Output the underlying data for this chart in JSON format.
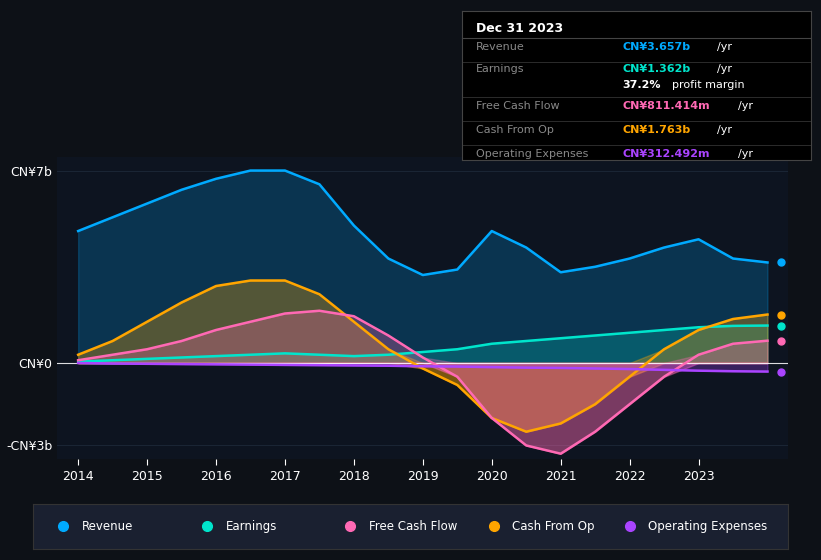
{
  "background_color": "#0d1117",
  "plot_bg_color": "#0d1420",
  "grid_color": "#1e2a3a",
  "years": [
    2014,
    2014.5,
    2015,
    2015.5,
    2016,
    2016.5,
    2017,
    2017.5,
    2018,
    2018.5,
    2019,
    2019.5,
    2020,
    2020.5,
    2021,
    2021.5,
    2022,
    2022.5,
    2023,
    2023.5,
    2024
  ],
  "revenue": [
    4.8,
    5.3,
    5.8,
    6.3,
    6.7,
    7.0,
    7.0,
    6.5,
    5.0,
    3.8,
    3.2,
    3.4,
    4.8,
    4.2,
    3.3,
    3.5,
    3.8,
    4.2,
    4.5,
    3.8,
    3.657
  ],
  "earnings": [
    0.05,
    0.1,
    0.15,
    0.2,
    0.25,
    0.3,
    0.35,
    0.3,
    0.25,
    0.3,
    0.4,
    0.5,
    0.7,
    0.8,
    0.9,
    1.0,
    1.1,
    1.2,
    1.3,
    1.35,
    1.362
  ],
  "free_cash_flow": [
    0.1,
    0.3,
    0.5,
    0.8,
    1.2,
    1.5,
    1.8,
    1.9,
    1.7,
    1.0,
    0.2,
    -0.5,
    -2.0,
    -3.0,
    -3.3,
    -2.5,
    -1.5,
    -0.5,
    0.3,
    0.7,
    0.811
  ],
  "cash_from_op": [
    0.3,
    0.8,
    1.5,
    2.2,
    2.8,
    3.0,
    3.0,
    2.5,
    1.5,
    0.5,
    -0.2,
    -0.8,
    -2.0,
    -2.5,
    -2.2,
    -1.5,
    -0.5,
    0.5,
    1.2,
    1.6,
    1.763
  ],
  "operating_expenses": [
    0.0,
    -0.02,
    -0.03,
    -0.04,
    -0.05,
    -0.06,
    -0.07,
    -0.08,
    -0.09,
    -0.1,
    -0.12,
    -0.13,
    -0.15,
    -0.17,
    -0.18,
    -0.2,
    -0.22,
    -0.25,
    -0.28,
    -0.3,
    -0.312
  ],
  "revenue_color": "#00aaff",
  "earnings_color": "#00e5cc",
  "free_cash_flow_color": "#ff69b4",
  "cash_from_op_color": "#ffa500",
  "operating_expenses_color": "#aa44ff",
  "ylim": [
    -3.5,
    7.5
  ],
  "xtick_years": [
    2014,
    2015,
    2016,
    2017,
    2018,
    2019,
    2020,
    2021,
    2022,
    2023
  ],
  "tooltip_date": "Dec 31 2023",
  "tooltip_revenue_val": "CN¥3.657b",
  "tooltip_earnings_val": "CN¥1.362b",
  "tooltip_margin": "37.2%",
  "tooltip_fcf_val": "CN¥811.414m",
  "tooltip_cashop_val": "CN¥1.763b",
  "tooltip_opex_val": "CN¥312.492m",
  "legend_items": [
    "Revenue",
    "Earnings",
    "Free Cash Flow",
    "Cash From Op",
    "Operating Expenses"
  ],
  "legend_colors": [
    "#00aaff",
    "#00e5cc",
    "#ff69b4",
    "#ffa500",
    "#aa44ff"
  ]
}
